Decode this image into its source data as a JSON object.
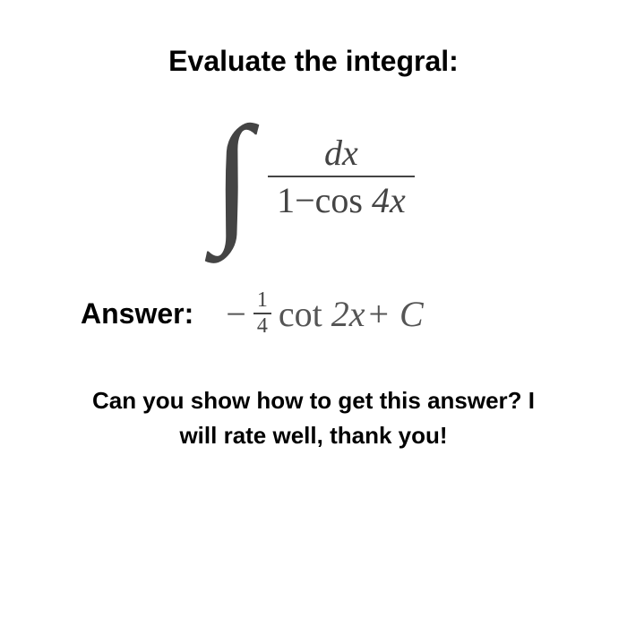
{
  "heading": "Evaluate the integral:",
  "integral": {
    "symbol": "∫",
    "numerator_dx": "dx",
    "denominator_prefix": "1−",
    "denominator_func": "cos ",
    "denominator_arg": "4x",
    "color": "#444444",
    "symbol_fontsize": 160,
    "fraction_fontsize": 40
  },
  "answer": {
    "label": "Answer:",
    "minus": "−",
    "frac_num": "1",
    "frac_den": "4",
    "func": "cot ",
    "arg": "2x",
    "plus": " + ",
    "constant": "C",
    "color": "#555555",
    "fontsize": 40,
    "small_frac_fontsize": 24
  },
  "footer": {
    "line1": "Can you show how to get this answer? I",
    "line2": "will rate well, thank you!"
  },
  "typography": {
    "heading_fontsize": 32,
    "heading_weight": "bold",
    "footer_fontsize": 26,
    "footer_weight": "bold",
    "body_font": "Arial",
    "math_font": "Georgia"
  },
  "background_color": "#ffffff"
}
